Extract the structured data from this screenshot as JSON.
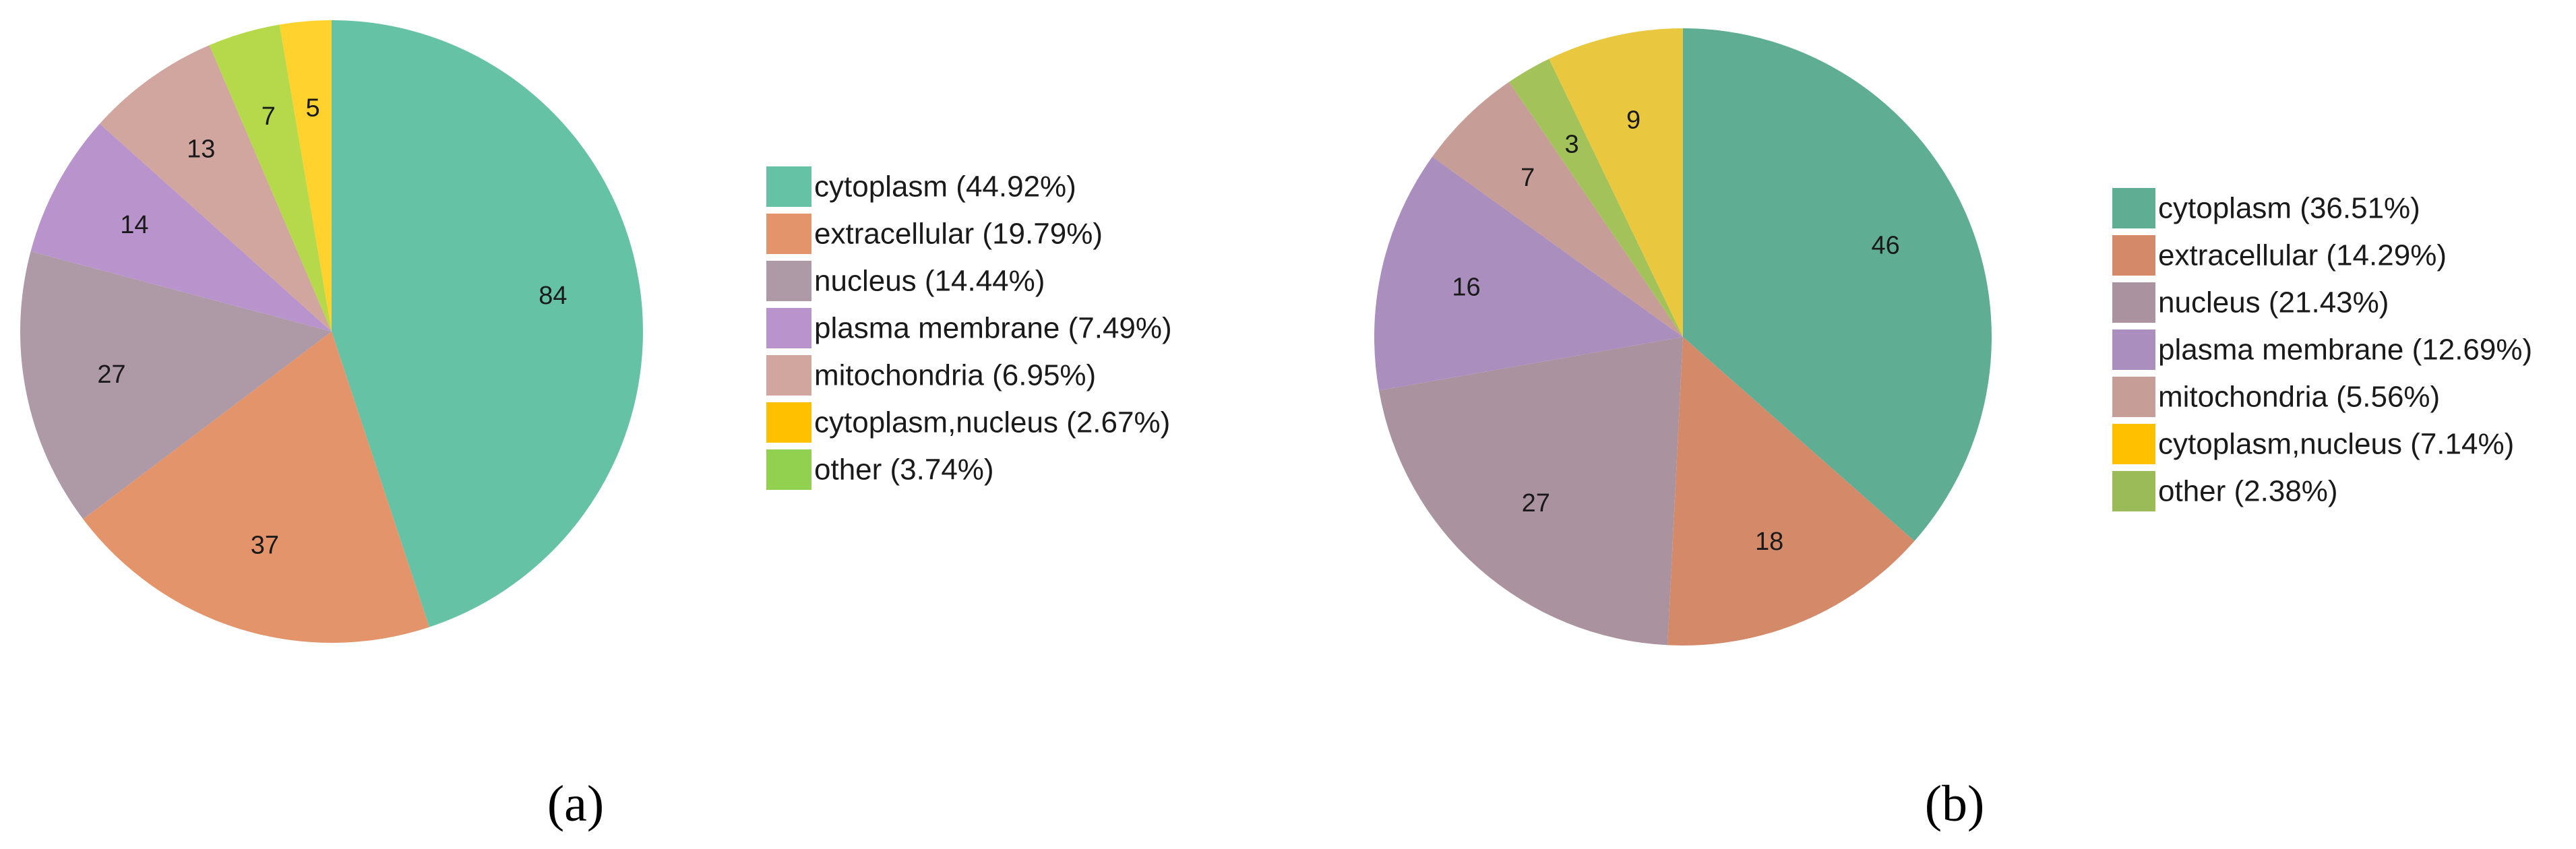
{
  "colors": {
    "a": {
      "cytoplasm": "#66c2a5",
      "extracellular": "#e4946a",
      "nucleus": "#ae9aa6",
      "plasma_membrane": "#b994cc",
      "mitochondria": "#d0a69e",
      "cytoplasm_nucleus": "#ffd22e",
      "other": "#b5d94a"
    },
    "b": {
      "cytoplasm": "#5fae94",
      "extracellular": "#d48a69",
      "nucleus": "#aa939e",
      "plasma_membrane": "#aa8ebd",
      "mitochondria": "#c79e97",
      "cytoplasm_nucleus": "#e9c83f",
      "other": "#a4c25a"
    },
    "legend_cytoplasm_nucleus": "#ffc000",
    "legend_other_a": "#92d050",
    "legend_other_b": "#9bbb59"
  },
  "chart_data": [
    {
      "type": "pie",
      "panel_label": "(a)",
      "slices": [
        {
          "category": "cytoplasm",
          "value": 84,
          "label": "84",
          "legend": "cytoplasm (44.92%)"
        },
        {
          "category": "extracellular",
          "value": 37,
          "label": "37",
          "legend": "extracellular (19.79%)"
        },
        {
          "category": "nucleus",
          "value": 27,
          "label": "27",
          "legend": "nucleus (14.44%)"
        },
        {
          "category": "plasma_membrane",
          "value": 14,
          "label": "14",
          "legend": "plasma membrane (7.49%)"
        },
        {
          "category": "mitochondria",
          "value": 13,
          "label": "13",
          "legend": "mitochondria (6.95%)"
        },
        {
          "category": "other",
          "value": 7,
          "label": "7",
          "legend": "other (3.74%)"
        },
        {
          "category": "cytoplasm_nucleus",
          "value": 5,
          "label": "5",
          "legend": "cytoplasm,nucleus (2.67%)"
        }
      ],
      "legend_order": [
        "cytoplasm",
        "extracellular",
        "nucleus",
        "plasma_membrane",
        "mitochondria",
        "cytoplasm_nucleus",
        "other"
      ],
      "legend_placement": "right"
    },
    {
      "type": "pie",
      "panel_label": "(b)",
      "slices": [
        {
          "category": "cytoplasm",
          "value": 46,
          "label": "46",
          "legend": "cytoplasm (36.51%)"
        },
        {
          "category": "extracellular",
          "value": 18,
          "label": "18",
          "legend": "extracellular (14.29%)"
        },
        {
          "category": "nucleus",
          "value": 27,
          "label": "27",
          "legend": "nucleus (21.43%)"
        },
        {
          "category": "plasma_membrane",
          "value": 16,
          "label": "16",
          "legend": "plasma membrane (12.69%)"
        },
        {
          "category": "mitochondria",
          "value": 7,
          "label": "7",
          "legend": "mitochondria (5.56%)"
        },
        {
          "category": "other",
          "value": 3,
          "label": "3",
          "legend": "other (2.38%)"
        },
        {
          "category": "cytoplasm_nucleus",
          "value": 9,
          "label": "9",
          "legend": "cytoplasm,nucleus (7.14%)"
        }
      ],
      "legend_order": [
        "cytoplasm",
        "extracellular",
        "nucleus",
        "plasma_membrane",
        "mitochondria",
        "cytoplasm_nucleus",
        "other"
      ],
      "legend_placement": "right"
    }
  ]
}
